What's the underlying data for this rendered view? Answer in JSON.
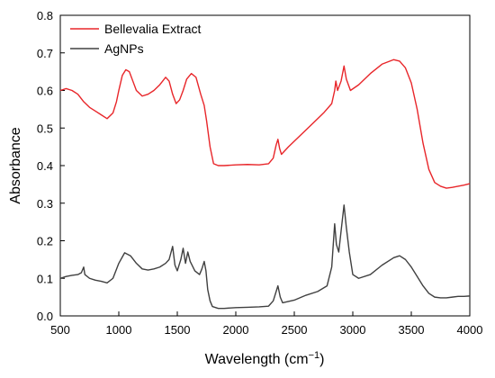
{
  "chart_data": {
    "type": "line",
    "title": "",
    "xlabel": "Wavelength (cm",
    "xlabel_sup": "−1",
    "xlabel_close": ")",
    "ylabel": "Absorbance",
    "xlim": [
      500,
      4000
    ],
    "ylim": [
      0.0,
      0.8
    ],
    "x_ticks": [
      500,
      1000,
      1500,
      2000,
      2500,
      3000,
      3500,
      4000
    ],
    "x_tick_labels": [
      "500",
      "1000",
      "1500",
      "2000",
      "2500",
      "3000",
      "3500",
      "4000"
    ],
    "y_ticks": [
      0.0,
      0.1,
      0.2,
      0.3,
      0.4,
      0.5,
      0.6,
      0.7,
      0.8
    ],
    "y_tick_labels": [
      "0.0",
      "0.1",
      "0.2",
      "0.3",
      "0.4",
      "0.5",
      "0.6",
      "0.7",
      "0.8"
    ],
    "grid": false,
    "legend_position": "top-left",
    "series": [
      {
        "name": "Bellevalia Extract",
        "color": "#e8262a",
        "points": [
          [
            500,
            0.6
          ],
          [
            550,
            0.605
          ],
          [
            600,
            0.6
          ],
          [
            650,
            0.59
          ],
          [
            700,
            0.57
          ],
          [
            750,
            0.555
          ],
          [
            800,
            0.545
          ],
          [
            850,
            0.535
          ],
          [
            900,
            0.525
          ],
          [
            950,
            0.54
          ],
          [
            980,
            0.57
          ],
          [
            1000,
            0.6
          ],
          [
            1030,
            0.64
          ],
          [
            1060,
            0.655
          ],
          [
            1090,
            0.65
          ],
          [
            1120,
            0.625
          ],
          [
            1150,
            0.6
          ],
          [
            1200,
            0.585
          ],
          [
            1250,
            0.59
          ],
          [
            1300,
            0.6
          ],
          [
            1350,
            0.615
          ],
          [
            1400,
            0.635
          ],
          [
            1430,
            0.625
          ],
          [
            1460,
            0.59
          ],
          [
            1490,
            0.565
          ],
          [
            1520,
            0.575
          ],
          [
            1550,
            0.6
          ],
          [
            1580,
            0.63
          ],
          [
            1620,
            0.645
          ],
          [
            1660,
            0.635
          ],
          [
            1700,
            0.59
          ],
          [
            1730,
            0.56
          ],
          [
            1750,
            0.52
          ],
          [
            1780,
            0.45
          ],
          [
            1810,
            0.405
          ],
          [
            1850,
            0.4
          ],
          [
            1900,
            0.4
          ],
          [
            2000,
            0.402
          ],
          [
            2100,
            0.403
          ],
          [
            2200,
            0.402
          ],
          [
            2280,
            0.405
          ],
          [
            2320,
            0.42
          ],
          [
            2345,
            0.455
          ],
          [
            2360,
            0.47
          ],
          [
            2375,
            0.445
          ],
          [
            2390,
            0.43
          ],
          [
            2450,
            0.45
          ],
          [
            2550,
            0.48
          ],
          [
            2650,
            0.51
          ],
          [
            2750,
            0.54
          ],
          [
            2820,
            0.565
          ],
          [
            2845,
            0.6
          ],
          [
            2855,
            0.625
          ],
          [
            2870,
            0.6
          ],
          [
            2900,
            0.625
          ],
          [
            2925,
            0.665
          ],
          [
            2945,
            0.63
          ],
          [
            2980,
            0.6
          ],
          [
            3050,
            0.615
          ],
          [
            3150,
            0.645
          ],
          [
            3250,
            0.67
          ],
          [
            3350,
            0.682
          ],
          [
            3400,
            0.678
          ],
          [
            3450,
            0.66
          ],
          [
            3500,
            0.62
          ],
          [
            3550,
            0.55
          ],
          [
            3600,
            0.46
          ],
          [
            3650,
            0.39
          ],
          [
            3700,
            0.355
          ],
          [
            3750,
            0.345
          ],
          [
            3800,
            0.34
          ],
          [
            3850,
            0.342
          ],
          [
            3900,
            0.345
          ],
          [
            3950,
            0.348
          ],
          [
            4000,
            0.352
          ]
        ]
      },
      {
        "name": "AgNPs",
        "color": "#404040",
        "points": [
          [
            500,
            0.1
          ],
          [
            550,
            0.105
          ],
          [
            600,
            0.108
          ],
          [
            650,
            0.11
          ],
          [
            680,
            0.115
          ],
          [
            700,
            0.13
          ],
          [
            710,
            0.11
          ],
          [
            750,
            0.1
          ],
          [
            800,
            0.095
          ],
          [
            850,
            0.092
          ],
          [
            900,
            0.088
          ],
          [
            950,
            0.1
          ],
          [
            1000,
            0.14
          ],
          [
            1050,
            0.168
          ],
          [
            1100,
            0.16
          ],
          [
            1150,
            0.14
          ],
          [
            1200,
            0.125
          ],
          [
            1250,
            0.122
          ],
          [
            1300,
            0.125
          ],
          [
            1350,
            0.13
          ],
          [
            1400,
            0.14
          ],
          [
            1430,
            0.15
          ],
          [
            1460,
            0.185
          ],
          [
            1480,
            0.135
          ],
          [
            1500,
            0.12
          ],
          [
            1530,
            0.15
          ],
          [
            1550,
            0.18
          ],
          [
            1570,
            0.14
          ],
          [
            1590,
            0.17
          ],
          [
            1610,
            0.145
          ],
          [
            1650,
            0.12
          ],
          [
            1690,
            0.11
          ],
          [
            1710,
            0.125
          ],
          [
            1730,
            0.145
          ],
          [
            1745,
            0.12
          ],
          [
            1760,
            0.07
          ],
          [
            1780,
            0.04
          ],
          [
            1800,
            0.025
          ],
          [
            1850,
            0.02
          ],
          [
            1900,
            0.02
          ],
          [
            2000,
            0.022
          ],
          [
            2100,
            0.023
          ],
          [
            2200,
            0.024
          ],
          [
            2280,
            0.026
          ],
          [
            2320,
            0.04
          ],
          [
            2345,
            0.065
          ],
          [
            2360,
            0.08
          ],
          [
            2380,
            0.05
          ],
          [
            2400,
            0.035
          ],
          [
            2500,
            0.042
          ],
          [
            2600,
            0.055
          ],
          [
            2700,
            0.065
          ],
          [
            2780,
            0.08
          ],
          [
            2820,
            0.13
          ],
          [
            2845,
            0.245
          ],
          [
            2860,
            0.19
          ],
          [
            2880,
            0.17
          ],
          [
            2905,
            0.24
          ],
          [
            2925,
            0.295
          ],
          [
            2945,
            0.235
          ],
          [
            2970,
            0.17
          ],
          [
            3000,
            0.11
          ],
          [
            3050,
            0.1
          ],
          [
            3150,
            0.11
          ],
          [
            3250,
            0.135
          ],
          [
            3350,
            0.155
          ],
          [
            3400,
            0.16
          ],
          [
            3450,
            0.15
          ],
          [
            3500,
            0.13
          ],
          [
            3550,
            0.105
          ],
          [
            3600,
            0.08
          ],
          [
            3650,
            0.06
          ],
          [
            3700,
            0.05
          ],
          [
            3750,
            0.048
          ],
          [
            3800,
            0.048
          ],
          [
            3850,
            0.05
          ],
          [
            3900,
            0.052
          ],
          [
            3950,
            0.052
          ],
          [
            4000,
            0.053
          ]
        ]
      }
    ]
  }
}
